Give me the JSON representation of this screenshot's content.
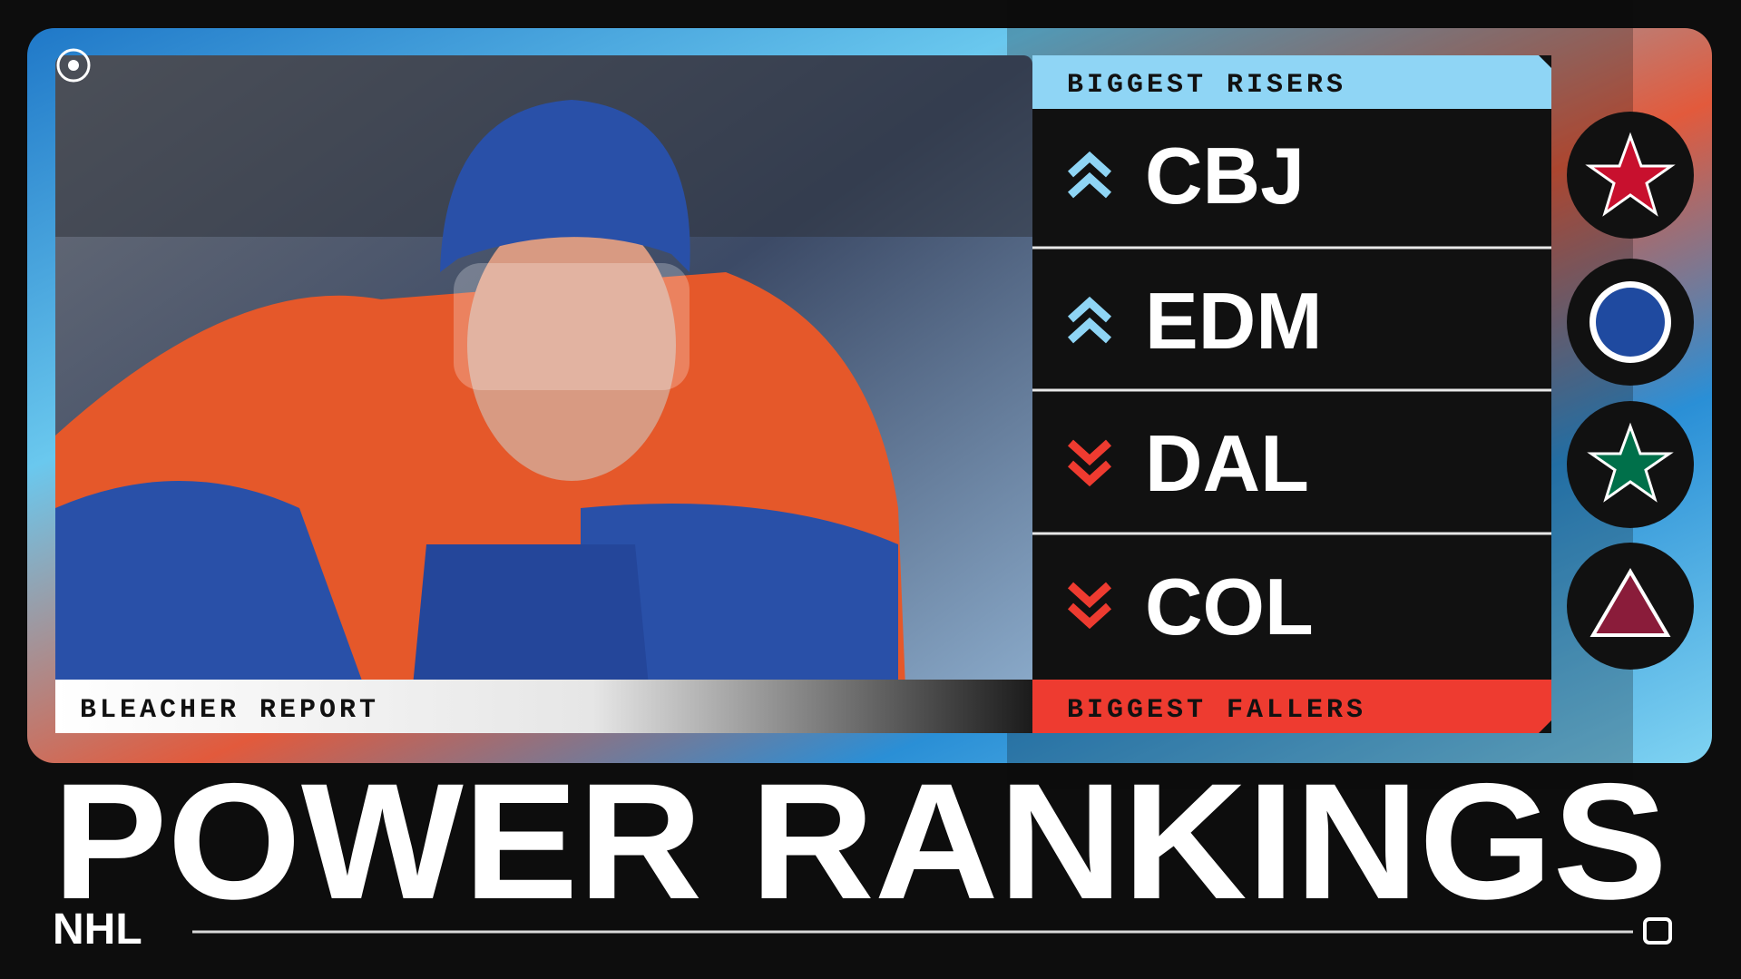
{
  "risers_label": "BIGGEST RISERS",
  "fallers_label": "BIGGEST FALLERS",
  "credit": "BLEACHER REPORT",
  "teams": [
    "CBJ",
    "EDM",
    "DAL",
    "COL"
  ],
  "title": "POWER RANKINGS",
  "league": "NHL"
}
